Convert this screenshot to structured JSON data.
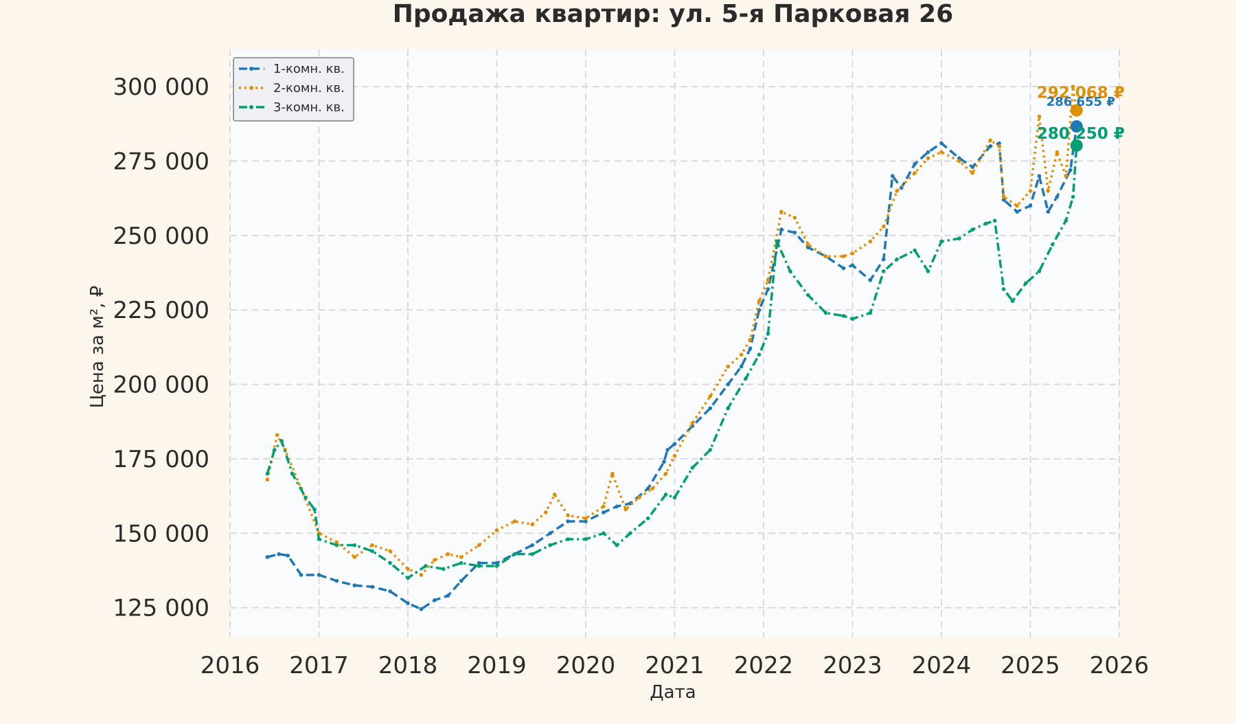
{
  "chart_data": {
    "type": "line",
    "title": "Продажа квартир: ул. 5-я Парковая 26",
    "xlabel": "Дата",
    "ylabel": "Цена за м², ₽",
    "xlim": [
      2016.0,
      2026.0
    ],
    "ylim": [
      115000,
      312500
    ],
    "x_ticks": [
      2016,
      2017,
      2018,
      2019,
      2020,
      2021,
      2022,
      2023,
      2024,
      2025,
      2026
    ],
    "x_tick_labels": [
      "2016",
      "2017",
      "2018",
      "2019",
      "2020",
      "2021",
      "2022",
      "2023",
      "2024",
      "2025",
      "2026"
    ],
    "y_ticks": [
      125000,
      150000,
      175000,
      200000,
      225000,
      250000,
      275000,
      300000
    ],
    "y_tick_labels": [
      "125 000",
      "150 000",
      "175 000",
      "200 000",
      "225 000",
      "250 000",
      "275 000",
      "300 000"
    ],
    "grid": true,
    "legend_position": "top-left",
    "colors": {
      "page_bg": "#fdf6ec",
      "plot_bg": "#fafbfc",
      "grid": "#d9d9d9",
      "text": "#2b2b2b"
    },
    "series": [
      {
        "name": "1-комн. кв.",
        "color": "#1f77b4",
        "dash": "dashed",
        "x": [
          2016.42,
          2016.55,
          2016.65,
          2016.8,
          2017.0,
          2017.2,
          2017.4,
          2017.6,
          2017.8,
          2018.0,
          2018.15,
          2018.3,
          2018.45,
          2018.6,
          2018.8,
          2019.0,
          2019.2,
          2019.4,
          2019.6,
          2019.8,
          2020.0,
          2020.2,
          2020.35,
          2020.5,
          2020.7,
          2020.88,
          2020.92,
          2021.0,
          2021.2,
          2021.4,
          2021.6,
          2021.75,
          2021.85,
          2021.95,
          2022.05,
          2022.2,
          2022.35,
          2022.5,
          2022.7,
          2022.9,
          2023.0,
          2023.2,
          2023.35,
          2023.45,
          2023.55,
          2023.7,
          2023.85,
          2024.0,
          2024.2,
          2024.35,
          2024.55,
          2024.65,
          2024.7,
          2024.85,
          2025.0,
          2025.1,
          2025.2,
          2025.3,
          2025.45,
          2025.52
        ],
        "y": [
          142000,
          143000,
          142500,
          136000,
          136000,
          134000,
          132500,
          132000,
          130500,
          126500,
          124500,
          127500,
          129000,
          134000,
          140000,
          140000,
          143000,
          146000,
          150000,
          154000,
          154000,
          157000,
          159000,
          160000,
          165000,
          174000,
          178000,
          180000,
          186000,
          192000,
          200000,
          206000,
          212000,
          225000,
          232000,
          252000,
          251000,
          246000,
          243000,
          239000,
          240000,
          235000,
          242000,
          270000,
          266000,
          274000,
          278000,
          281000,
          276000,
          273000,
          280000,
          281000,
          262000,
          258000,
          260000,
          270000,
          258000,
          263000,
          272000,
          286655
        ]
      },
      {
        "name": "2-комн. кв.",
        "color": "#de8f05",
        "dash": "dotted",
        "x": [
          2016.42,
          2016.53,
          2016.62,
          2016.8,
          2017.0,
          2017.2,
          2017.4,
          2017.6,
          2017.8,
          2018.0,
          2018.15,
          2018.3,
          2018.45,
          2018.6,
          2018.8,
          2019.0,
          2019.2,
          2019.4,
          2019.55,
          2019.65,
          2019.8,
          2020.0,
          2020.2,
          2020.3,
          2020.45,
          2020.6,
          2020.75,
          2020.9,
          2021.0,
          2021.2,
          2021.4,
          2021.6,
          2021.75,
          2021.85,
          2021.95,
          2022.05,
          2022.2,
          2022.35,
          2022.5,
          2022.7,
          2022.9,
          2023.0,
          2023.2,
          2023.35,
          2023.5,
          2023.7,
          2023.85,
          2024.0,
          2024.2,
          2024.35,
          2024.55,
          2024.65,
          2024.7,
          2024.85,
          2025.0,
          2025.1,
          2025.2,
          2025.3,
          2025.4,
          2025.48,
          2025.52
        ],
        "y": [
          168000,
          183000,
          178000,
          165000,
          150000,
          147000,
          142000,
          146000,
          144000,
          138000,
          136000,
          141000,
          143000,
          142000,
          146000,
          151000,
          154000,
          153000,
          157000,
          163000,
          156000,
          155000,
          159000,
          170000,
          158000,
          162000,
          165000,
          170000,
          176000,
          187000,
          196000,
          206000,
          210000,
          215000,
          228000,
          235000,
          258000,
          256000,
          247000,
          243000,
          243000,
          244000,
          248000,
          253000,
          265000,
          271000,
          276000,
          278000,
          275000,
          271000,
          282000,
          280000,
          263000,
          260000,
          265000,
          290000,
          265000,
          278000,
          270000,
          300000,
          292068
        ]
      },
      {
        "name": "3-комн. кв.",
        "color": "#029e73",
        "dash": "dashdot",
        "x": [
          2016.42,
          2016.5,
          2016.58,
          2016.7,
          2016.85,
          2016.95,
          2017.0,
          2017.2,
          2017.4,
          2017.6,
          2017.8,
          2018.0,
          2018.2,
          2018.4,
          2018.6,
          2018.8,
          2019.0,
          2019.2,
          2019.4,
          2019.6,
          2019.8,
          2020.0,
          2020.2,
          2020.35,
          2020.5,
          2020.7,
          2020.9,
          2021.0,
          2021.2,
          2021.4,
          2021.6,
          2021.8,
          2021.95,
          2022.05,
          2022.15,
          2022.3,
          2022.5,
          2022.7,
          2022.9,
          2023.0,
          2023.2,
          2023.35,
          2023.5,
          2023.7,
          2023.85,
          2024.0,
          2024.2,
          2024.35,
          2024.5,
          2024.6,
          2024.7,
          2024.8,
          2024.95,
          2025.1,
          2025.25,
          2025.4,
          2025.48,
          2025.52
        ],
        "y": [
          170000,
          178000,
          181000,
          170000,
          162000,
          158000,
          148000,
          146000,
          146000,
          144000,
          140000,
          135000,
          139000,
          138000,
          140000,
          139000,
          139000,
          143000,
          143000,
          146000,
          148000,
          148000,
          150000,
          146000,
          150000,
          155000,
          163000,
          162000,
          172000,
          178000,
          192000,
          202000,
          210000,
          217000,
          248000,
          238000,
          230000,
          224000,
          223000,
          222000,
          224000,
          238000,
          242000,
          245000,
          238000,
          248000,
          249000,
          252000,
          254000,
          255000,
          232000,
          228000,
          234000,
          238000,
          247000,
          255000,
          263000,
          280250
        ]
      }
    ],
    "annotations": [
      {
        "text": "292 068 ₽",
        "series": "2-комн. кв.",
        "x": 2025.52,
        "y": 292068
      },
      {
        "text": "286 655 ₽",
        "series": "1-комн. кв.",
        "x": 2025.52,
        "y": 286655
      },
      {
        "text": "280 250 ₽",
        "series": "3-комн. кв.",
        "x": 2025.52,
        "y": 280250
      }
    ]
  }
}
